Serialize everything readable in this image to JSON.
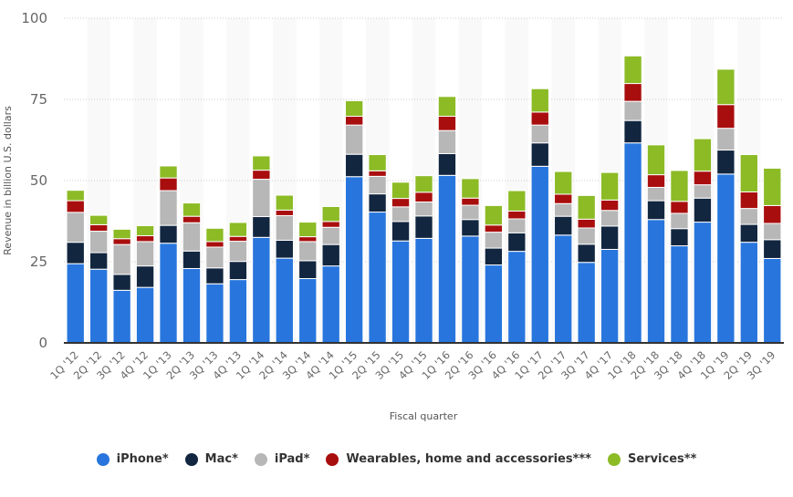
{
  "chart_data": {
    "type": "bar",
    "stacked": true,
    "title": "",
    "xlabel": "Fiscal quarter",
    "ylabel": "Revenue in billion U.S. dollars",
    "ylim": [
      0,
      100
    ],
    "yticks": [
      0,
      25,
      50,
      75,
      100
    ],
    "grid": true,
    "legend_position": "bottom",
    "categories": [
      "1Q '12",
      "2Q '12",
      "3Q '12",
      "4Q '12",
      "1Q '13",
      "2Q '13",
      "3Q '13",
      "4Q '13",
      "1Q '14",
      "2Q '14",
      "3Q '14",
      "4Q '14",
      "1Q '15",
      "2Q '15",
      "3Q '15",
      "4Q '15",
      "1Q '16",
      "2Q '16",
      "3Q '16",
      "4Q '16",
      "1Q '17",
      "2Q '17",
      "3Q '17",
      "4Q '17",
      "1Q '18",
      "2Q '18",
      "3Q '18",
      "4Q '18",
      "1Q '19",
      "2Q '19",
      "3Q '19"
    ],
    "series": [
      {
        "name": "iPhone*",
        "color": "#2876dd",
        "values": [
          24.4,
          22.7,
          16.2,
          17.1,
          30.7,
          22.9,
          18.2,
          19.5,
          32.5,
          26.1,
          19.8,
          23.7,
          51.2,
          40.3,
          31.4,
          32.2,
          51.6,
          32.9,
          24.0,
          28.2,
          54.4,
          33.2,
          24.8,
          28.8,
          61.6,
          38.0,
          29.9,
          37.2,
          52.0,
          31.0,
          26.0
        ]
      },
      {
        "name": "Mac*",
        "color": "#12263f",
        "values": [
          6.6,
          5.1,
          4.9,
          6.6,
          5.5,
          5.4,
          4.9,
          5.6,
          6.4,
          5.5,
          5.5,
          6.6,
          6.9,
          5.6,
          6.0,
          6.9,
          6.7,
          5.1,
          5.2,
          5.7,
          7.2,
          5.8,
          5.6,
          7.2,
          6.9,
          5.8,
          5.3,
          7.4,
          7.4,
          5.5,
          5.8
        ]
      },
      {
        "name": "iPad*",
        "color": "#b7b7b7",
        "values": [
          9.2,
          6.6,
          9.2,
          7.5,
          10.7,
          8.7,
          6.4,
          6.2,
          11.5,
          7.6,
          5.9,
          5.3,
          9.0,
          5.4,
          4.5,
          4.3,
          7.1,
          4.4,
          4.9,
          4.3,
          5.5,
          3.9,
          5.0,
          4.8,
          5.9,
          4.1,
          4.7,
          4.1,
          6.7,
          4.9,
          5.0
        ]
      },
      {
        "name": "Wearables, home and accessories***",
        "color": "#a90e0e",
        "values": [
          3.6,
          2.0,
          1.8,
          1.8,
          3.9,
          2.0,
          1.7,
          1.5,
          2.8,
          1.7,
          1.5,
          1.8,
          2.7,
          1.7,
          2.6,
          3.0,
          4.4,
          2.2,
          2.2,
          2.4,
          4.0,
          2.9,
          2.7,
          3.2,
          5.5,
          3.9,
          3.7,
          4.2,
          7.3,
          5.1,
          5.5
        ]
      },
      {
        "name": "Services**",
        "color": "#8cbb26",
        "values": [
          3.2,
          2.9,
          2.9,
          3.1,
          3.7,
          4.1,
          4.1,
          4.3,
          4.4,
          4.6,
          4.5,
          4.6,
          4.8,
          5.0,
          5.0,
          5.1,
          6.1,
          6.0,
          6.0,
          6.3,
          7.2,
          7.0,
          7.3,
          8.5,
          8.5,
          9.2,
          9.5,
          10.0,
          10.9,
          11.5,
          11.5
        ]
      }
    ]
  },
  "legend": {
    "items": [
      {
        "label": "iPhone*",
        "color": "#2876dd"
      },
      {
        "label": "Mac*",
        "color": "#12263f"
      },
      {
        "label": "iPad*",
        "color": "#b7b7b7"
      },
      {
        "label": "Wearables, home and accessories***",
        "color": "#a90e0e"
      },
      {
        "label": "Services**",
        "color": "#8cbb26"
      }
    ]
  }
}
